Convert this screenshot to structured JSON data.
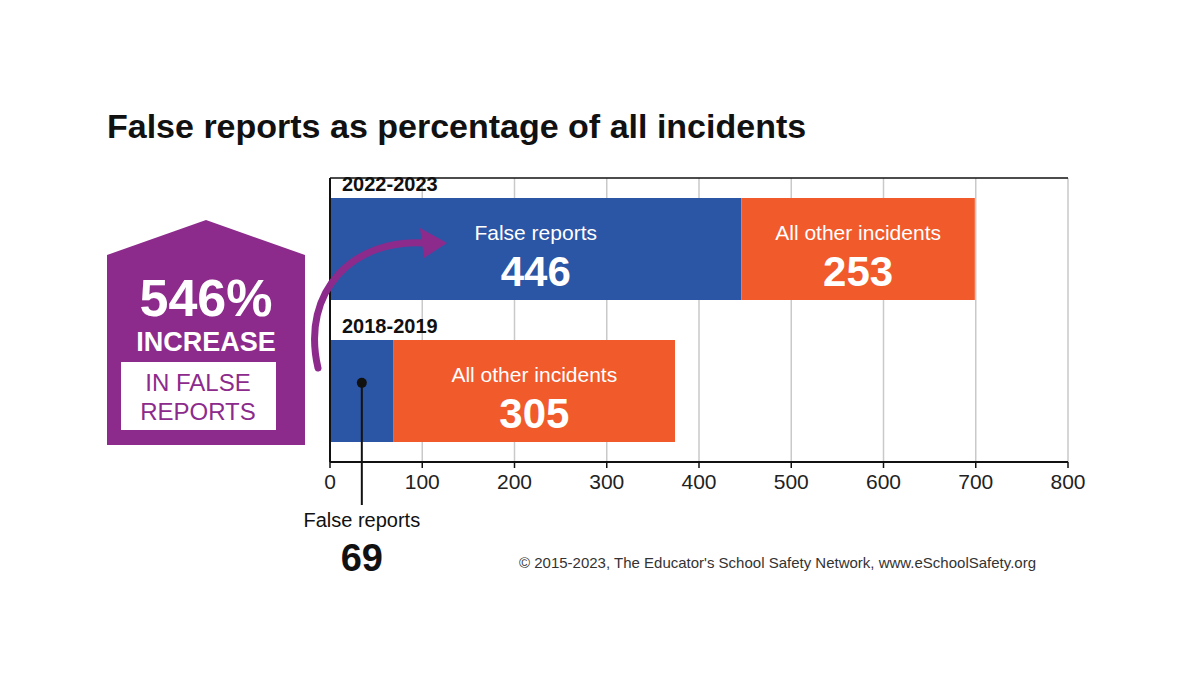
{
  "chart_data": {
    "type": "bar",
    "title": "False reports as percentage of all incidents",
    "orientation": "horizontal",
    "stacked": true,
    "data_labels": true,
    "grid": true,
    "categories": [
      "2022-2023",
      "2018-2019"
    ],
    "series": [
      {
        "name": "False reports",
        "color": "#2b55a5",
        "values": [
          446,
          69
        ]
      },
      {
        "name": "All other incidents",
        "color": "#f15a2b",
        "values": [
          253,
          305
        ]
      }
    ],
    "xlim": [
      0,
      800
    ],
    "xticks": [
      0,
      100,
      200,
      300,
      400,
      500,
      600,
      700,
      800
    ],
    "annotations": {
      "badge": [
        "546%",
        "INCREASE",
        "IN FALSE",
        "REPORTS"
      ],
      "source": "© 2015-2023, The Educator's School Safety Network, www.eSchoolSafety.org"
    }
  }
}
